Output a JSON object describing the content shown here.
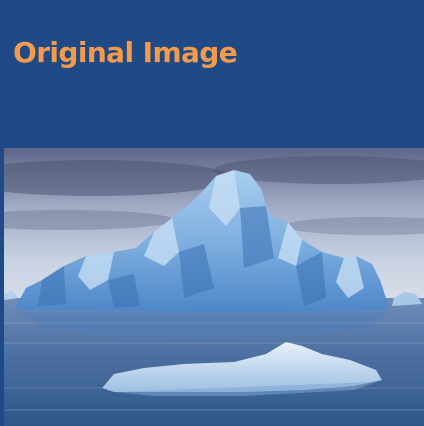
{
  "slide": {
    "title": "Original Image"
  },
  "colors": {
    "background": "#1f4a86",
    "title": "#f39a4c"
  },
  "photo": {
    "subject": "iceberg-photo"
  }
}
